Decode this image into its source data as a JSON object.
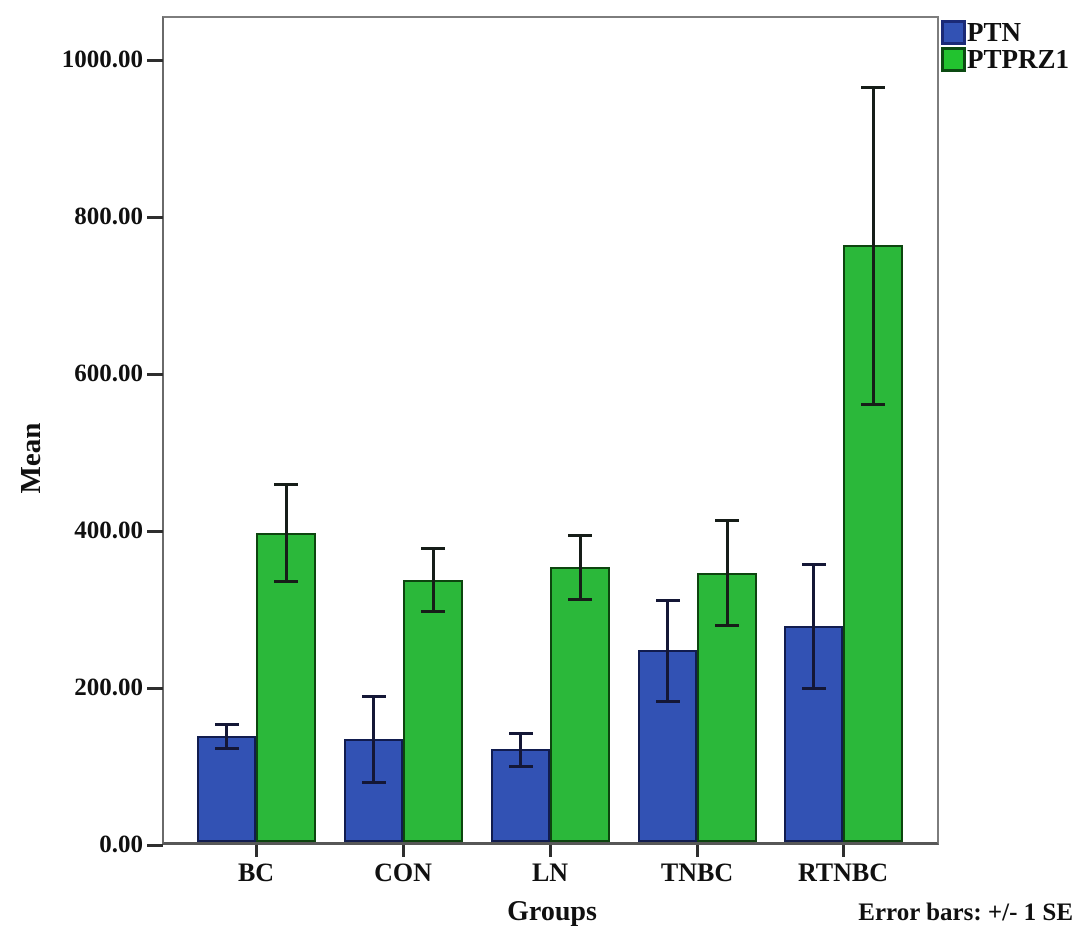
{
  "y_axis": {
    "label": "Mean",
    "ticks": [
      {
        "label": "0.00",
        "value": 0
      },
      {
        "label": "200.00",
        "value": 200
      },
      {
        "label": "400.00",
        "value": 400
      },
      {
        "label": "600.00",
        "value": 600
      },
      {
        "label": "800.00",
        "value": 800
      },
      {
        "label": "1000.00",
        "value": 1000
      }
    ]
  },
  "x_axis": {
    "label": "Groups"
  },
  "legend": {
    "items": [
      {
        "label": "PTN",
        "color": "#3252b4",
        "border_color": "#1b2a77"
      },
      {
        "label": "PTPRZ1",
        "color": "#22c32f",
        "border_color": "#0c4a12"
      }
    ]
  },
  "footnote": "Error bars: +/- 1 SE",
  "chart_data": {
    "type": "bar",
    "title": "",
    "xlabel": "Groups",
    "ylabel": "Mean",
    "categories": [
      "BC",
      "CON",
      "LN",
      "TNBC",
      "RTNBC"
    ],
    "series": [
      {
        "name": "PTN",
        "color": "#3252b4",
        "border_color": "#111c4f",
        "errorbar_color": "#141736",
        "values": [
          135,
          131,
          118,
          244,
          275
        ],
        "stderr": [
          15,
          55,
          21,
          64,
          79
        ]
      },
      {
        "name": "PTPRZ1",
        "color": "#2bb83a",
        "border_color": "#0d450f",
        "errorbar_color": "#161d18",
        "values": [
          394,
          334,
          350,
          343,
          760
        ],
        "stderr": [
          62,
          40,
          41,
          67,
          202
        ]
      }
    ],
    "ylim": [
      0,
      1056
    ],
    "yticks": [
      0,
      200,
      400,
      600,
      800,
      1000
    ],
    "grid": false,
    "legend_position": "top-right-outside",
    "error_bars": "+/- 1 SE"
  }
}
